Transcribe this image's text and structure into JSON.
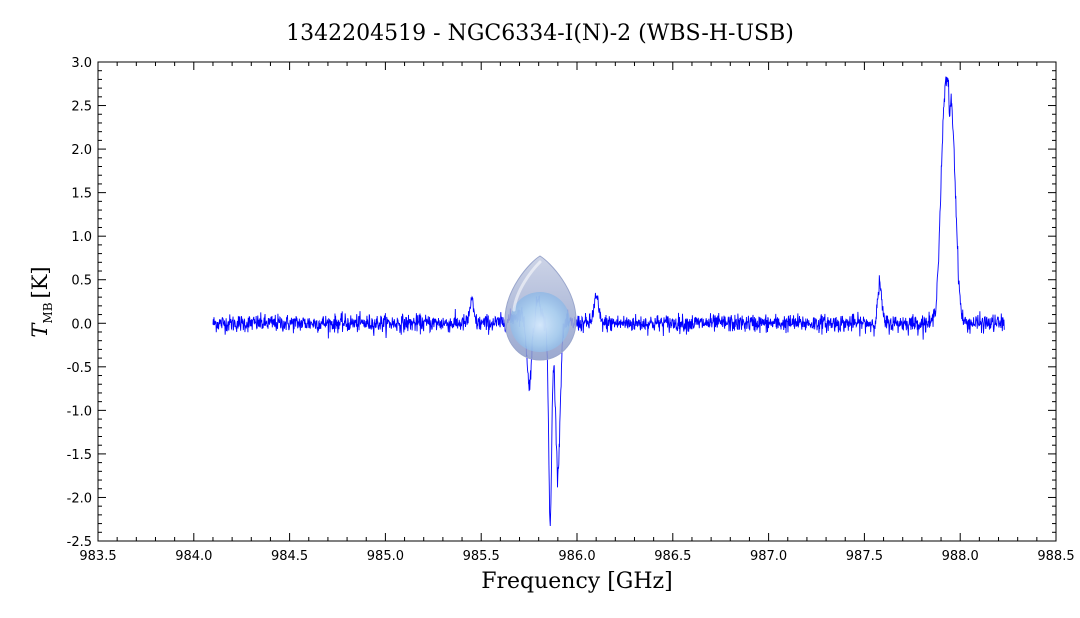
{
  "chart_data": {
    "type": "line",
    "title": "1342204519 - NGC6334-I(N)-2 (WBS-H-USB)",
    "xlabel": "Frequency [GHz]",
    "ylabel_main": "T",
    "ylabel_sub": "MB",
    "ylabel_unit": "[K]",
    "xlim": [
      983.5,
      988.5
    ],
    "ylim": [
      -2.5,
      3.0
    ],
    "x_major_ticks": [
      983.5,
      984.0,
      984.5,
      985.0,
      985.5,
      986.0,
      986.5,
      987.0,
      987.5,
      988.0,
      988.5
    ],
    "x_tick_labels": [
      "983.5",
      "984.0",
      "984.5",
      "985.0",
      "985.5",
      "986.0",
      "986.5",
      "987.0",
      "987.5",
      "988.0",
      "988.5"
    ],
    "y_major_ticks": [
      -2.5,
      -2.0,
      -1.5,
      -1.0,
      -0.5,
      0.0,
      0.5,
      1.0,
      1.5,
      2.0,
      2.5,
      3.0
    ],
    "y_tick_labels": [
      "-2.5",
      "-2.0",
      "-1.5",
      "-1.0",
      "-0.5",
      "0.0",
      "0.5",
      "1.0",
      "1.5",
      "2.0",
      "2.5",
      "3.0"
    ],
    "grid": false,
    "series_color": "#0000ff",
    "x_range": [
      984.1,
      988.23
    ],
    "baseline_noise_rms": 0.05,
    "features": [
      {
        "center": 985.45,
        "amplitude": 0.25,
        "width": 0.01
      },
      {
        "center": 985.7,
        "amplitude": 0.1,
        "width": 0.04
      },
      {
        "center": 985.75,
        "amplitude": -0.75,
        "width": 0.012
      },
      {
        "center": 985.8,
        "amplitude": 0.3,
        "width": 0.012
      },
      {
        "center": 985.86,
        "amplitude": -2.3,
        "width": 0.008
      },
      {
        "center": 985.9,
        "amplitude": -1.7,
        "width": 0.012
      },
      {
        "center": 986.1,
        "amplitude": 0.3,
        "width": 0.012
      },
      {
        "center": 987.58,
        "amplitude": 0.45,
        "width": 0.01
      },
      {
        "center": 987.92,
        "amplitude": 2.4,
        "width": 0.022
      },
      {
        "center": 987.945,
        "amplitude": -0.3,
        "width": 0.003
      },
      {
        "center": 987.96,
        "amplitude": 1.9,
        "width": 0.02
      }
    ]
  },
  "overlay": {
    "icon": "teardrop-marker-icon",
    "color_outer": "#8a9ac8",
    "color_inner": "#a9d4f5"
  }
}
